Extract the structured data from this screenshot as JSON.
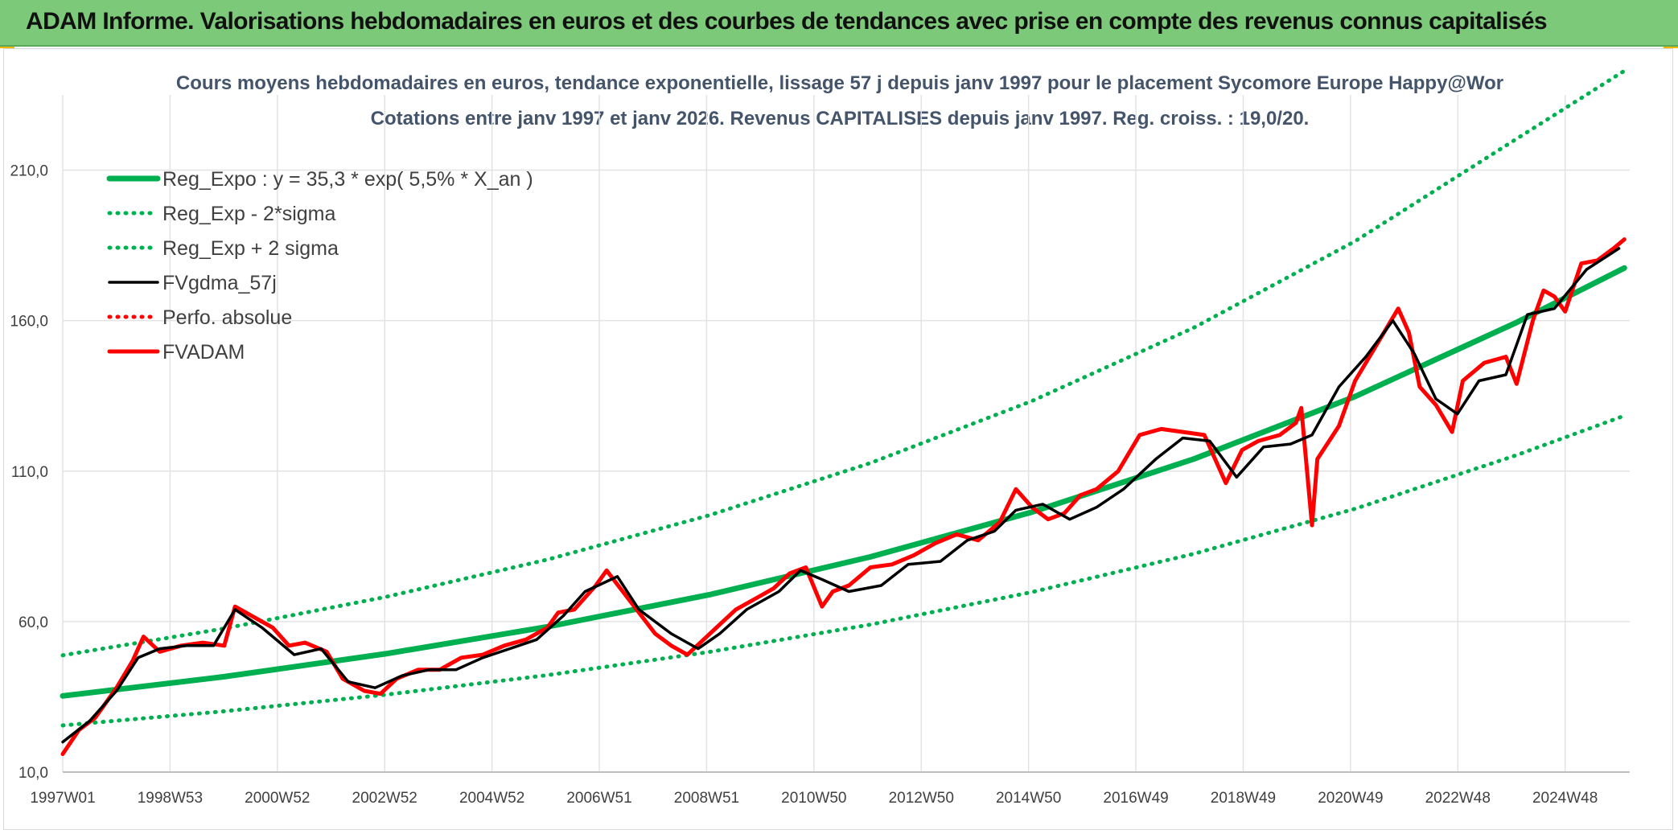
{
  "header": {
    "title": "ADAM Informe. Valorisations hebdomadaires en euros et des courbes de tendances avec prise en compte des revenus connus capitalisés"
  },
  "colors": {
    "header_bg": "#7dc97a",
    "reg_expo": "#00b050",
    "fvgdma": "#000000",
    "fvadam": "#ff0000",
    "title": "#44546a"
  },
  "chart_data": {
    "type": "line",
    "title": "Cours moyens hebdomadaires en euros, tendance exponentielle, lissage 57 j depuis janv 1997 pour le placement Sycomore Europe Happy@Wor",
    "subtitle": "Cotations entre janv 1997 et janv 2026. Revenus CAPITALISES depuis janv 1997. Reg. croiss. : 19,0/20.",
    "xlabel": "",
    "ylabel": "",
    "x_ticks": [
      "1997W01",
      "1998W53",
      "2000W52",
      "2002W52",
      "2004W52",
      "2006W51",
      "2008W51",
      "2010W50",
      "2012W50",
      "2014W50",
      "2016W49",
      "2018W49",
      "2020W49",
      "2022W48",
      "2024W48"
    ],
    "x_range": [
      1997.0,
      2026.1
    ],
    "y_ticks": [
      "10,0",
      "60,0",
      "110,0",
      "160,0",
      "210,0"
    ],
    "ylim": [
      10,
      235
    ],
    "grid": true,
    "legend_position": "top-left",
    "legend": [
      {
        "label": "Reg_Expo : y = 35,3 * exp( 5,5% *  X_an )",
        "style": "solid-thick",
        "color": "#00b050"
      },
      {
        "label": "Reg_Exp - 2*sigma",
        "style": "dotted",
        "color": "#00b050"
      },
      {
        "label": "Reg_Exp + 2 sigma",
        "style": "dotted",
        "color": "#00b050"
      },
      {
        "label": "FVgdma_57j",
        "style": "solid",
        "color": "#000000"
      },
      {
        "label": "Perfo. absolue",
        "style": "dotted",
        "color": "#ff0000"
      },
      {
        "label": "FVADAM",
        "style": "solid-thick",
        "color": "#ff0000"
      }
    ],
    "series": [
      {
        "name": "Reg_Expo : y = 35,3 * exp( 5,5% *  X_an )",
        "x": [
          1997,
          2000,
          2003,
          2006,
          2009,
          2012,
          2015,
          2018,
          2021,
          2024,
          2026
        ],
        "values": [
          35.3,
          41.7,
          49.3,
          58.3,
          68.9,
          81.5,
          96.4,
          114.0,
          134.8,
          159.4,
          177.5
        ]
      },
      {
        "name": "Reg_Exp - 2*sigma",
        "x": [
          1997,
          2000,
          2003,
          2006,
          2009,
          2012,
          2015,
          2018,
          2021,
          2024,
          2026
        ],
        "values": [
          25.5,
          30.2,
          35.7,
          42.2,
          49.9,
          59.0,
          69.8,
          82.5,
          97.5,
          115.3,
          128.4
        ]
      },
      {
        "name": "Reg_Exp + 2 sigma",
        "x": [
          1997,
          2000,
          2003,
          2006,
          2009,
          2012,
          2015,
          2018,
          2021,
          2024,
          2026
        ],
        "values": [
          48.8,
          57.7,
          68.2,
          80.6,
          95.3,
          112.7,
          133.3,
          157.6,
          186.4,
          220.4,
          245.4
        ]
      },
      {
        "name": "FVgdma_57j",
        "x": [
          1997.0,
          1997.5,
          1998.0,
          1998.4,
          1998.8,
          1999.3,
          1999.8,
          2000.2,
          2000.7,
          2001.3,
          2001.8,
          2002.3,
          2002.8,
          2003.3,
          2003.8,
          2004.3,
          2004.8,
          2005.3,
          2005.8,
          2006.3,
          2006.7,
          2007.3,
          2007.7,
          2008.3,
          2008.8,
          2009.2,
          2009.7,
          2010.3,
          2010.7,
          2011.1,
          2011.6,
          2012.2,
          2012.7,
          2013.3,
          2013.8,
          2014.3,
          2014.7,
          2015.2,
          2015.7,
          2016.2,
          2016.7,
          2017.3,
          2017.8,
          2018.3,
          2018.8,
          2019.3,
          2019.8,
          2020.2,
          2020.7,
          2021.2,
          2021.7,
          2022.1,
          2022.5,
          2022.9,
          2023.3,
          2023.8,
          2024.2,
          2024.7,
          2025.3,
          2025.9
        ],
        "values": [
          20,
          27,
          37,
          48,
          51,
          52,
          52,
          64,
          58,
          49,
          51,
          40,
          38,
          42,
          44,
          44,
          48,
          51,
          54,
          62,
          70,
          75,
          64,
          56,
          51,
          56,
          64,
          70,
          77,
          74,
          70,
          72,
          79,
          80,
          87,
          90,
          97,
          99,
          94,
          98,
          104,
          114,
          121,
          120,
          108,
          118,
          119,
          122,
          138,
          148,
          160,
          149,
          134,
          129,
          140,
          142,
          162,
          164,
          177,
          184
        ]
      },
      {
        "name": "FVADAM",
        "x": [
          1997.0,
          1997.3,
          1997.6,
          1998.0,
          1998.3,
          1998.5,
          1998.8,
          1999.2,
          1999.6,
          2000.0,
          2000.2,
          2000.5,
          2000.9,
          2001.2,
          2001.5,
          2001.9,
          2002.2,
          2002.6,
          2002.9,
          2003.2,
          2003.6,
          2004.0,
          2004.4,
          2004.8,
          2005.2,
          2005.6,
          2006.0,
          2006.2,
          2006.5,
          2006.9,
          2007.1,
          2007.4,
          2007.7,
          2008.0,
          2008.3,
          2008.6,
          2008.9,
          2009.2,
          2009.5,
          2009.9,
          2010.2,
          2010.5,
          2010.8,
          2011.1,
          2011.3,
          2011.6,
          2012.0,
          2012.4,
          2012.8,
          2013.2,
          2013.6,
          2014.0,
          2014.4,
          2014.7,
          2015.0,
          2015.3,
          2015.6,
          2015.9,
          2016.2,
          2016.6,
          2017.0,
          2017.4,
          2017.8,
          2018.2,
          2018.6,
          2018.9,
          2019.2,
          2019.6,
          2019.9,
          2020.0,
          2020.2,
          2020.3,
          2020.7,
          2021.0,
          2021.4,
          2021.8,
          2022.0,
          2022.2,
          2022.5,
          2022.8,
          2023.0,
          2023.4,
          2023.8,
          2024.0,
          2024.3,
          2024.5,
          2024.7,
          2024.9,
          2025.2,
          2025.5,
          2025.8,
          2026.0
        ],
        "values": [
          16,
          24,
          28,
          38,
          47,
          55,
          50,
          52,
          53,
          52,
          65,
          62,
          58,
          52,
          53,
          50,
          41,
          37,
          36,
          41,
          44,
          44,
          48,
          49,
          52,
          54,
          58,
          63,
          64,
          72,
          77,
          70,
          63,
          56,
          52,
          49,
          54,
          59,
          64,
          68,
          71,
          76,
          78,
          65,
          70,
          72,
          78,
          79,
          82,
          86,
          89,
          87,
          93,
          104,
          98,
          94,
          96,
          102,
          104,
          110,
          122,
          124,
          123,
          122,
          106,
          117,
          120,
          122,
          126,
          131,
          92,
          114,
          125,
          140,
          152,
          164,
          156,
          138,
          132,
          123,
          140,
          146,
          148,
          139,
          160,
          170,
          168,
          163,
          179,
          180,
          184,
          187
        ]
      }
    ]
  }
}
